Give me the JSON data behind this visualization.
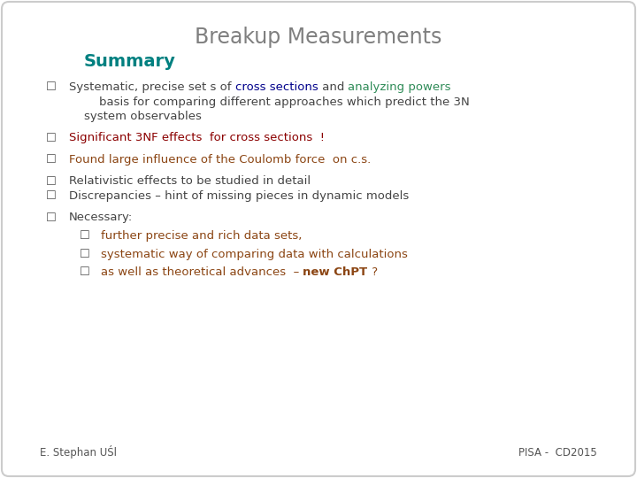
{
  "title": "Breakup Measurements",
  "subtitle": "Summary",
  "background_color": "#ffffff",
  "border_color": "#cccccc",
  "title_color": "#7f7f7f",
  "subtitle_color": "#008080",
  "footer_left": "E. Stephan UŚl",
  "footer_right": "PISA -  CD2015",
  "footer_color": "#555555",
  "bullet_color": "#555555",
  "fontsize_title": 17,
  "fontsize_subtitle": 14,
  "fontsize_body": 9.5,
  "fontsize_footer": 8.5,
  "bullet_char": "☐",
  "items": [
    {
      "lines": [
        [
          {
            "text": "Systematic, precise set s of ",
            "color": "#444444",
            "bold": false
          },
          {
            "text": "cross sections",
            "color": "#00008b",
            "bold": false
          },
          {
            "text": " and ",
            "color": "#444444",
            "bold": false
          },
          {
            "text": "analyzing powers",
            "color": "#2e8b57",
            "bold": false
          }
        ],
        [
          {
            "text": "        basis for comparing different approaches which predict the 3N",
            "color": "#444444",
            "bold": false
          }
        ],
        [
          {
            "text": "    system observables",
            "color": "#444444",
            "bold": false
          }
        ]
      ],
      "indent": 0
    },
    {
      "lines": [
        [
          {
            "text": "Significant 3NF effects  for cross sections  !",
            "color": "#8b0000",
            "bold": false
          }
        ]
      ],
      "indent": 0
    },
    {
      "lines": [
        [
          {
            "text": "Found large influence of the Coulomb force  on c.s.",
            "color": "#8b4513",
            "bold": false
          }
        ]
      ],
      "indent": 0
    },
    {
      "lines": [
        [
          {
            "text": "Relativistic effects to be studied in detail",
            "color": "#444444",
            "bold": false
          }
        ]
      ],
      "indent": 0
    },
    {
      "lines": [
        [
          {
            "text": "Discrepancies – hint of missing pieces in dynamic models",
            "color": "#444444",
            "bold": false
          }
        ]
      ],
      "indent": 0
    },
    {
      "lines": [
        [
          {
            "text": "Necessary:",
            "color": "#444444",
            "bold": false
          }
        ]
      ],
      "indent": 0
    },
    {
      "lines": [
        [
          {
            "text": "further precise and rich data sets,",
            "color": "#8b4513",
            "bold": false
          }
        ]
      ],
      "indent": 1
    },
    {
      "lines": [
        [
          {
            "text": "systematic way of comparing data with calculations",
            "color": "#8b4513",
            "bold": false
          }
        ]
      ],
      "indent": 1
    },
    {
      "lines": [
        [
          {
            "text": "as well as theoretical advances  – ",
            "color": "#8b4513",
            "bold": false
          },
          {
            "text": "new ChPT",
            "color": "#8b4513",
            "bold": true
          },
          {
            "text": " ?",
            "color": "#8b4513",
            "bold": false
          }
        ]
      ],
      "indent": 1
    }
  ]
}
